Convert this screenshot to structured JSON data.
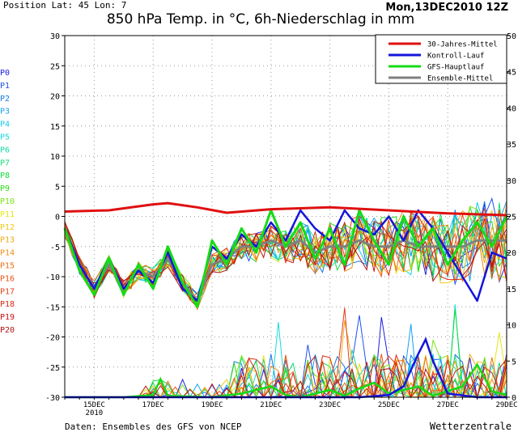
{
  "header": {
    "position": "Position   Lat: 45 Lon: 7",
    "run": "Mon,13DEC2010 12Z",
    "title": "850 hPa Temp. in °C, 6h-Niederschlag in mm"
  },
  "footer": {
    "source": "Daten: Ensembles des GFS von NCEP",
    "brand": "Wetterzentrale"
  },
  "member_labels": [
    "P0",
    "P1",
    "P2",
    "P3",
    "P4",
    "P5",
    "P6",
    "P7",
    "P8",
    "P9",
    "P10",
    "P11",
    "P12",
    "P13",
    "P14",
    "P15",
    "P16",
    "P17",
    "P18",
    "P19",
    "P20"
  ],
  "member_colors": [
    "#1e1ee6",
    "#1e50f0",
    "#1478e6",
    "#14a0f0",
    "#14c8e6",
    "#14dcdc",
    "#14dcaa",
    "#14dc78",
    "#14dc3c",
    "#28dc14",
    "#78e614",
    "#e6e614",
    "#f0c814",
    "#f0aa14",
    "#f08c14",
    "#f06e14",
    "#f05014",
    "#e63c14",
    "#dc2814",
    "#c81414",
    "#b41414"
  ],
  "chart_data": {
    "type": "line",
    "x_range_days": [
      14,
      29
    ],
    "x_ticks": [
      {
        "day": 15,
        "label": "15DEC",
        "sublabel": "2010"
      },
      {
        "day": 17,
        "label": "17DEC"
      },
      {
        "day": 19,
        "label": "19DEC"
      },
      {
        "day": 21,
        "label": "21DEC"
      },
      {
        "day": 23,
        "label": "23DEC"
      },
      {
        "day": 25,
        "label": "25DEC"
      },
      {
        "day": 27,
        "label": "27DEC"
      },
      {
        "day": 29,
        "label": "29DEC"
      }
    ],
    "y_left": {
      "min": -30,
      "max": 30,
      "ticks": [
        -30,
        -25,
        -20,
        -15,
        -10,
        -5,
        0,
        5,
        10,
        15,
        20,
        25,
        30
      ]
    },
    "y_right": {
      "min": 0,
      "max": 50,
      "ticks": [
        0,
        5,
        10,
        15,
        20,
        25,
        30,
        35,
        40,
        45,
        50
      ]
    },
    "grid": true,
    "legend_position": "top-right",
    "series": [
      {
        "name": "30-Jahres-Mittel",
        "color": "#e01010",
        "x": [
          14.0,
          15.5,
          17.0,
          17.5,
          18.5,
          19.5,
          21.0,
          23.0,
          25.0,
          27.0,
          29.0
        ],
        "y": [
          0.8,
          1.0,
          2.0,
          2.2,
          1.5,
          0.6,
          1.2,
          1.5,
          1.0,
          0.5,
          0.2
        ]
      },
      {
        "name": "Kontroll-Lauf",
        "color": "#1414dc",
        "x": [
          14.0,
          14.5,
          15.0,
          15.5,
          16.0,
          16.5,
          17.0,
          17.5,
          18.0,
          18.5,
          19.0,
          19.5,
          20.0,
          20.5,
          21.0,
          21.5,
          22.0,
          22.5,
          23.0,
          23.5,
          24.0,
          24.5,
          25.0,
          25.5,
          26.0,
          26.5,
          27.0,
          27.5,
          28.0,
          28.5,
          29.0
        ],
        "y": [
          -2,
          -8,
          -12,
          -7,
          -12,
          -9,
          -11,
          -6,
          -12,
          -14,
          -5,
          -7,
          -3,
          -5,
          -1,
          -4,
          1,
          -2,
          -4,
          1,
          -2,
          -3,
          0,
          -4,
          1,
          -2,
          -6,
          -10,
          -14,
          -6,
          -7
        ]
      },
      {
        "name": "GFS-Hauptlauf",
        "color": "#14dc14",
        "x": [
          14.0,
          14.5,
          15.0,
          15.5,
          16.0,
          16.5,
          17.0,
          17.5,
          18.0,
          18.5,
          19.0,
          19.5,
          20.0,
          20.5,
          21.0,
          21.5,
          22.0,
          22.5,
          23.0,
          23.5,
          24.0,
          24.5,
          25.0,
          25.5,
          26.0,
          26.5,
          27.0,
          27.5,
          28.0,
          28.5,
          29.0
        ],
        "y": [
          -2,
          -9,
          -13,
          -7,
          -13,
          -8,
          -12,
          -5,
          -11,
          -15,
          -4,
          -8,
          -2,
          -6,
          1,
          -5,
          -1,
          -7,
          -2,
          -8,
          1,
          -4,
          -8,
          0,
          -5,
          -2,
          -8,
          -4,
          -1,
          -5,
          0
        ]
      },
      {
        "name": "Ensemble-Mittel",
        "color": "#808080",
        "x": [
          14.0,
          14.5,
          15.0,
          15.5,
          16.0,
          16.5,
          17.0,
          17.5,
          18.0,
          18.5,
          19.0,
          19.5,
          20.0,
          20.5,
          21.0,
          21.5,
          22.0,
          22.5,
          23.0,
          23.5,
          24.0,
          24.5,
          25.0,
          25.5,
          26.0,
          26.5,
          27.0,
          27.5,
          28.0,
          28.5,
          29.0
        ],
        "y": [
          -2,
          -8,
          -12,
          -8,
          -12,
          -9,
          -10,
          -7,
          -11,
          -14,
          -8,
          -7,
          -5,
          -5,
          -4,
          -5,
          -4,
          -6,
          -5,
          -5,
          -4,
          -5,
          -5,
          -4,
          -5,
          -5,
          -5,
          -5,
          -4,
          -4,
          -4
        ]
      }
    ]
  }
}
